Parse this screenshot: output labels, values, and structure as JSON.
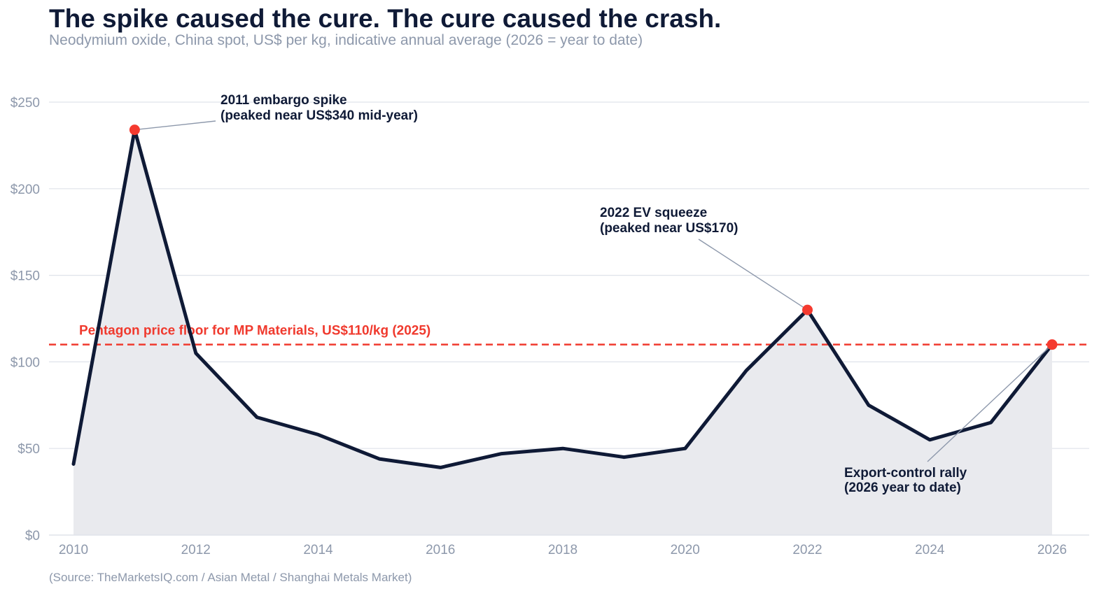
{
  "colors": {
    "line": "#0f1a36",
    "area": "#e9eaee",
    "marker": "#f53a2f",
    "floor": "#f03a2e",
    "grid": "#dfe3ea",
    "leader": "#8d98ab",
    "muted_text": "#8d98ab"
  },
  "source": "(Source: TheMarketsIQ.com / Asian Metal / Shanghai Metals Market)",
  "chart_data": {
    "type": "area",
    "title": "The spike caused the cure. The cure caused the crash.",
    "subtitle": "Neodymium oxide, China spot, US$ per kg, indicative annual average (2026 = year to date)",
    "xlabel": "",
    "ylabel": "",
    "x": [
      2010,
      2011,
      2012,
      2013,
      2014,
      2015,
      2016,
      2017,
      2018,
      2019,
      2020,
      2021,
      2022,
      2023,
      2024,
      2025,
      2026
    ],
    "values": [
      41,
      234,
      105,
      68,
      58,
      44,
      39,
      47,
      50,
      45,
      50,
      95,
      130,
      75,
      55,
      65,
      110
    ],
    "xlim": [
      2009.6,
      2026.6
    ],
    "ylim": [
      0,
      250
    ],
    "x_ticks": [
      2010,
      2012,
      2014,
      2016,
      2018,
      2020,
      2022,
      2024,
      2026
    ],
    "y_ticks": [
      0,
      50,
      100,
      150,
      200,
      250
    ],
    "y_tick_labels": [
      "$0",
      "$50",
      "$100",
      "$150",
      "$200",
      "$250"
    ],
    "grid": "horizontal",
    "highlighted_points": [
      2011,
      2022,
      2026
    ],
    "reference_line": {
      "y": 110,
      "label": "Pentagon price floor for MP Materials, US$110/kg (2025)"
    },
    "annotations": [
      {
        "target_x": 2011,
        "line1": "2011 embargo spike",
        "line2": "(peaked near US$340 mid-year)"
      },
      {
        "target_x": 2022,
        "line1": "2022 EV squeeze",
        "line2": "(peaked near US$170)"
      },
      {
        "target_x": 2026,
        "line1": "Export-control rally",
        "line2": "(2026 year to date)"
      }
    ]
  }
}
